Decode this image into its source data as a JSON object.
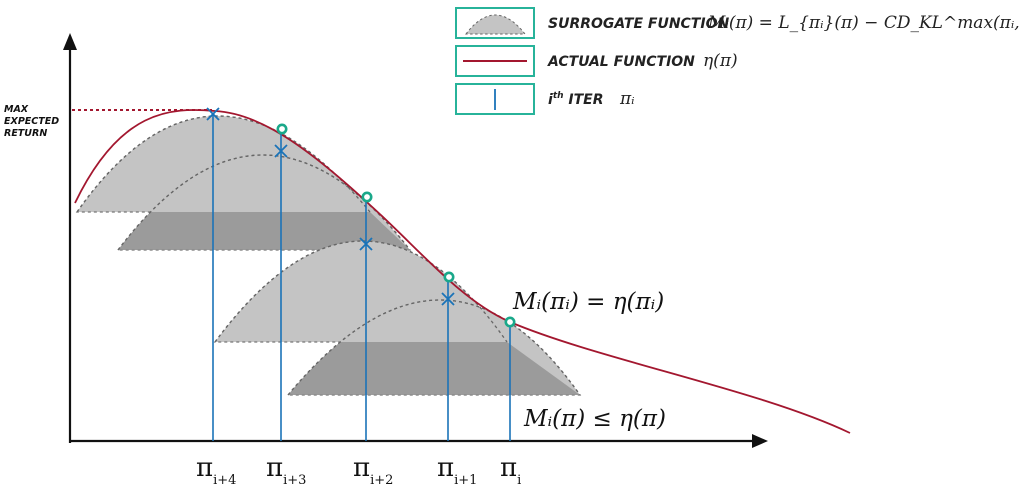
{
  "legend": {
    "surrogate": {
      "label": "SURROGATE FUNCTION",
      "formula": "Mᵢ(π) = L_{πᵢ}(π) − CD_KL^max(πᵢ, π)"
    },
    "actual": {
      "label": "ACTUAL FUNCTION",
      "formula": "η(π)"
    },
    "iter": {
      "label_main": "i",
      "label_sup": "th",
      "label_rest": " ITER",
      "formula": "πᵢ"
    }
  },
  "y_axis_label": [
    "MAX",
    "EXPECTED",
    "RETURN"
  ],
  "annotations": {
    "equality": "Mᵢ(πᵢ) = η(πᵢ)",
    "inequality": "Mᵢ(π) ≤ η(π)"
  },
  "iterations": [
    {
      "main": "π",
      "sub": "i+4"
    },
    {
      "main": "π",
      "sub": "i+3"
    },
    {
      "main": "π",
      "sub": "i+2"
    },
    {
      "main": "π",
      "sub": "i+1"
    },
    {
      "main": "π",
      "sub": "i"
    }
  ],
  "colors": {
    "actual": "#a3172f",
    "iter": "#1a73b8",
    "touch": "#1aa88a",
    "surrogate_fill": "#bfbfbf",
    "surrogate_overlap": "#8c8c8c",
    "legend_border": "#27b39a"
  }
}
